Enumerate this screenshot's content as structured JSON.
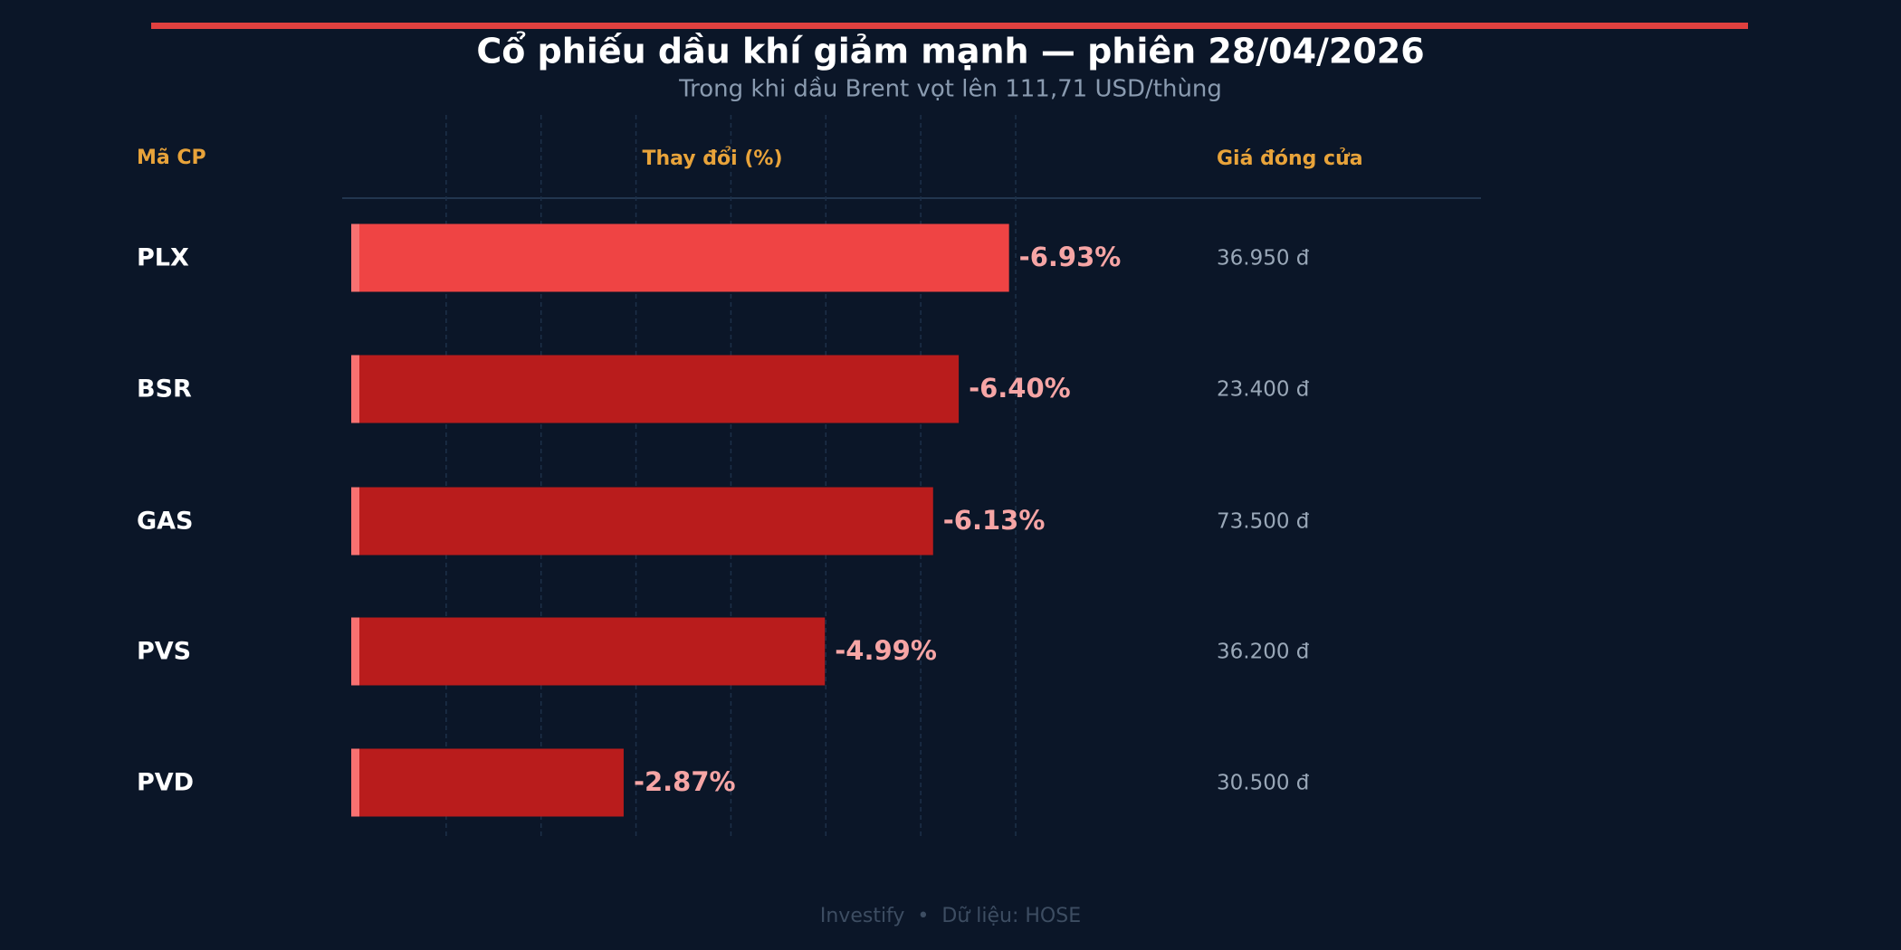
{
  "chart_data": {
    "type": "bar",
    "title": "Cổ phiếu dầu khí giảm mạnh — phiên 28/04/2026",
    "subtitle": "Trong khi dầu Brent vọt lên 111,71 USD/thùng",
    "column_headers": [
      "Mã CP",
      "Thay đổi (%)",
      "Giá đóng cửa"
    ],
    "categories": [
      "PLX",
      "BSR",
      "GAS",
      "PVS",
      "PVD"
    ],
    "values": [
      -6.93,
      -6.4,
      -6.13,
      -4.99,
      -2.87
    ],
    "value_labels": [
      "-6.93%",
      "-6.40%",
      "-6.13%",
      "-4.99%",
      "-2.87%"
    ],
    "prices": [
      "36.950 đ",
      "23.400 đ",
      "73.500 đ",
      "36.200 đ",
      "30.500 đ"
    ],
    "colors": [
      "#ef4444",
      "#b91c1c",
      "#b91c1c",
      "#b91c1c",
      "#b91c1c"
    ],
    "xlim": [
      0,
      -7
    ],
    "xticks": [
      -1,
      -2,
      -3,
      -4,
      -5,
      -6,
      -7
    ],
    "grid": true,
    "source": "Investify  •  Dữ liệu: HOSE"
  }
}
